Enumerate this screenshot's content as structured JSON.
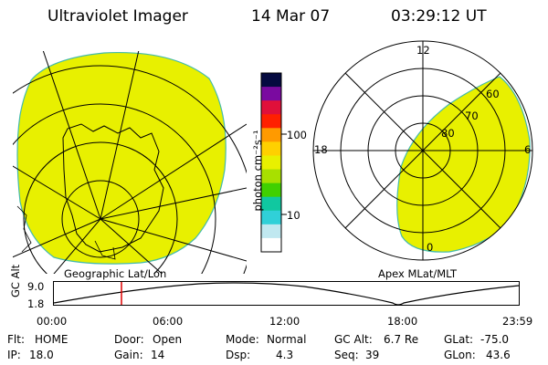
{
  "header": {
    "instrument": "Ultraviolet Imager",
    "date": "14 Mar 07",
    "time": "03:29:12 UT"
  },
  "geo_panel": {
    "caption": "Geographic Lat/Lon"
  },
  "colorbar": {
    "unit_label": "photon cm⁻²s⁻¹",
    "tick_labels": [
      "100",
      "10"
    ],
    "colors": [
      "#050a40",
      "#7a0aa0",
      "#e0103a",
      "#ff2000",
      "#ff9a00",
      "#ffd000",
      "#e8f000",
      "#a8e000",
      "#40d000",
      "#10c8a0",
      "#30d0d8",
      "#c0e8f0",
      "#ffffff"
    ]
  },
  "polar_panel": {
    "caption": "Apex MLat/MLT",
    "mlt_labels": {
      "top": "12",
      "left": "18",
      "right": "6",
      "bottom": "0"
    },
    "lat_labels": [
      "60",
      "70",
      "80"
    ]
  },
  "orbit_strip": {
    "y_axis_label": "GC Alt",
    "y_ticks": [
      "9.0",
      "1.8"
    ],
    "x_ticks": [
      "00:00",
      "06:00",
      "12:00",
      "18:00",
      "23:59"
    ]
  },
  "status": {
    "row1": [
      {
        "label": "Flt:",
        "value": "HOME"
      },
      {
        "label": "Door:",
        "value": "Open"
      },
      {
        "label": "Mode:",
        "value": "Normal"
      },
      {
        "label": "GC Alt:",
        "value": "6.7 Re"
      },
      {
        "label": "GLat:",
        "value": "-75.0"
      }
    ],
    "row2": [
      {
        "label": "IP:",
        "value": "18.0"
      },
      {
        "label": "Gain:",
        "value": "14"
      },
      {
        "label": "Dsp:",
        "value": "4.3"
      },
      {
        "label": "Seq:",
        "value": "39"
      },
      {
        "label": "GLon:",
        "value": "43.6"
      }
    ]
  },
  "colors": {
    "emission_fill": "#e8f000",
    "emission_edge": "#44bbaa",
    "marker_line": "#e00000"
  }
}
